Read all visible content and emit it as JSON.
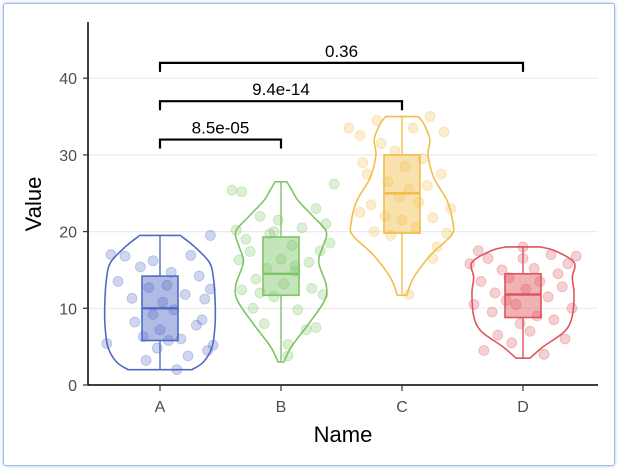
{
  "chart_data": {
    "type": "violin",
    "xlabel": "Name",
    "ylabel": "Value",
    "categories": [
      "A",
      "B",
      "C",
      "D"
    ],
    "ylim": [
      0,
      47
    ],
    "yticks": [
      0,
      10,
      20,
      30,
      40
    ],
    "grid": "horizontal-major",
    "colors": {
      "A": "#4f6bc4",
      "B": "#7dc466",
      "C": "#f2bd4a",
      "D": "#e0545c"
    },
    "boxes": [
      {
        "name": "A",
        "min": 2,
        "q1": 5.8,
        "median": 10,
        "q3": 14.2,
        "max": 19.5
      },
      {
        "name": "B",
        "min": 3,
        "q1": 11.7,
        "median": 14.5,
        "q3": 19.3,
        "max": 26.5
      },
      {
        "name": "C",
        "min": 11.7,
        "q1": 19.8,
        "median": 25,
        "q3": 30,
        "max": 35
      },
      {
        "name": "D",
        "min": 3.5,
        "q1": 8.8,
        "median": 11.8,
        "q3": 14.5,
        "max": 18
      }
    ],
    "violins": [
      {
        "name": "A",
        "profile": [
          [
            2,
            0.55
          ],
          [
            3,
            0.75
          ],
          [
            5,
            0.9
          ],
          [
            8,
            0.95
          ],
          [
            11,
            0.95
          ],
          [
            14,
            0.92
          ],
          [
            16,
            0.85
          ],
          [
            18,
            0.6
          ],
          [
            19.5,
            0.35
          ]
        ]
      },
      {
        "name": "B",
        "profile": [
          [
            3,
            0.05
          ],
          [
            5,
            0.18
          ],
          [
            8,
            0.48
          ],
          [
            11,
            0.75
          ],
          [
            13,
            0.78
          ],
          [
            16,
            0.65
          ],
          [
            18,
            0.72
          ],
          [
            20,
            0.78
          ],
          [
            22,
            0.55
          ],
          [
            24,
            0.3
          ],
          [
            25.5,
            0.18
          ],
          [
            26.5,
            0.1
          ]
        ]
      },
      {
        "name": "C",
        "profile": [
          [
            11.7,
            0.08
          ],
          [
            14,
            0.2
          ],
          [
            17,
            0.5
          ],
          [
            19.5,
            0.85
          ],
          [
            21,
            0.88
          ],
          [
            24,
            0.78
          ],
          [
            27,
            0.55
          ],
          [
            30,
            0.45
          ],
          [
            32,
            0.48
          ],
          [
            34,
            0.38
          ],
          [
            35,
            0.28
          ]
        ]
      },
      {
        "name": "D",
        "profile": [
          [
            3.5,
            0.12
          ],
          [
            5,
            0.35
          ],
          [
            7,
            0.72
          ],
          [
            9,
            0.85
          ],
          [
            12,
            0.88
          ],
          [
            14,
            0.85
          ],
          [
            16,
            0.88
          ],
          [
            17.5,
            0.55
          ],
          [
            18,
            0.3
          ]
        ]
      }
    ],
    "points": {
      "A": [
        [
          -0.38,
          5.4
        ],
        [
          -0.3,
          13.5
        ],
        [
          -0.25,
          16.8
        ],
        [
          -0.2,
          11.3
        ],
        [
          -0.18,
          8.2
        ],
        [
          -0.12,
          6.3
        ],
        [
          -0.1,
          3.2
        ],
        [
          -0.08,
          12.7
        ],
        [
          -0.05,
          9.2
        ],
        [
          -0.05,
          16.2
        ],
        [
          -0.02,
          4.8
        ],
        [
          0.0,
          7.2
        ],
        [
          0.02,
          10.8
        ],
        [
          0.05,
          13.0
        ],
        [
          0.08,
          14.7
        ],
        [
          0.1,
          9.8
        ],
        [
          0.12,
          2.0
        ],
        [
          0.15,
          6.0
        ],
        [
          0.18,
          11.8
        ],
        [
          0.2,
          3.8
        ],
        [
          0.22,
          16.9
        ],
        [
          0.28,
          14.2
        ],
        [
          0.3,
          8.5
        ],
        [
          0.32,
          11.2
        ],
        [
          0.34,
          4.5
        ],
        [
          0.36,
          12.5
        ],
        [
          0.38,
          5.2
        ],
        [
          0.36,
          19.5
        ],
        [
          -0.35,
          17.0
        ],
        [
          0.26,
          7.8
        ],
        [
          -0.14,
          15.4
        ],
        [
          0.06,
          5.8
        ]
      ],
      "B": [
        [
          -0.35,
          25.4
        ],
        [
          -0.28,
          25.2
        ],
        [
          -0.32,
          20.2
        ],
        [
          -0.3,
          16.3
        ],
        [
          -0.28,
          12.4
        ],
        [
          -0.25,
          19.0
        ],
        [
          -0.22,
          17.4
        ],
        [
          -0.2,
          10.0
        ],
        [
          -0.18,
          13.8
        ],
        [
          -0.15,
          22.0
        ],
        [
          -0.12,
          8.0
        ],
        [
          -0.1,
          15.2
        ],
        [
          -0.08,
          19.7
        ],
        [
          -0.05,
          11.5
        ],
        [
          -0.02,
          21.5
        ],
        [
          0.0,
          16.4
        ],
        [
          0.02,
          13.2
        ],
        [
          0.05,
          5.3
        ],
        [
          0.08,
          18.2
        ],
        [
          0.1,
          14.8
        ],
        [
          0.12,
          9.8
        ],
        [
          0.15,
          20.5
        ],
        [
          0.18,
          7.2
        ],
        [
          0.2,
          16.0
        ],
        [
          0.22,
          12.6
        ],
        [
          0.25,
          23.0
        ],
        [
          0.28,
          17.5
        ],
        [
          0.3,
          11.8
        ],
        [
          0.32,
          21.0
        ],
        [
          0.35,
          18.5
        ],
        [
          0.38,
          26.2
        ],
        [
          0.25,
          7.5
        ],
        [
          -0.15,
          12.0
        ],
        [
          0.05,
          3.8
        ],
        [
          -0.05,
          20.0
        ],
        [
          0.1,
          15.5
        ]
      ],
      "C": [
        [
          -0.38,
          33.5
        ],
        [
          -0.3,
          32.5
        ],
        [
          -0.28,
          29.0
        ],
        [
          -0.25,
          27.5
        ],
        [
          -0.22,
          23.5
        ],
        [
          -0.2,
          20.0
        ],
        [
          -0.18,
          34.5
        ],
        [
          -0.15,
          31.5
        ],
        [
          -0.12,
          22.0
        ],
        [
          -0.1,
          26.5
        ],
        [
          -0.08,
          19.5
        ],
        [
          -0.05,
          30.5
        ],
        [
          -0.02,
          24.5
        ],
        [
          0.0,
          21.5
        ],
        [
          0.02,
          28.5
        ],
        [
          0.05,
          25.5
        ],
        [
          0.08,
          33.5
        ],
        [
          0.1,
          20.5
        ],
        [
          0.12,
          23.8
        ],
        [
          0.15,
          29.5
        ],
        [
          0.18,
          26.0
        ],
        [
          0.2,
          35.0
        ],
        [
          0.22,
          21.8
        ],
        [
          0.25,
          18.0
        ],
        [
          0.28,
          27.5
        ],
        [
          0.3,
          33.0
        ],
        [
          0.32,
          19.8
        ],
        [
          0.35,
          23.0
        ],
        [
          0.05,
          11.8
        ],
        [
          -0.3,
          22.5
        ],
        [
          0.22,
          16.5
        ]
      ],
      "D": [
        [
          -0.38,
          15.8
        ],
        [
          -0.35,
          10.5
        ],
        [
          -0.3,
          13.5
        ],
        [
          -0.28,
          4.5
        ],
        [
          -0.25,
          16.5
        ],
        [
          -0.22,
          9.5
        ],
        [
          -0.2,
          12.0
        ],
        [
          -0.18,
          6.5
        ],
        [
          -0.15,
          15.0
        ],
        [
          -0.12,
          11.0
        ],
        [
          -0.1,
          14.0
        ],
        [
          -0.08,
          5.5
        ],
        [
          -0.05,
          10.5
        ],
        [
          -0.02,
          8.0
        ],
        [
          0.0,
          16.5
        ],
        [
          0.02,
          12.5
        ],
        [
          0.05,
          7.0
        ],
        [
          0.08,
          15.2
        ],
        [
          0.1,
          9.0
        ],
        [
          0.12,
          13.5
        ],
        [
          0.15,
          4.0
        ],
        [
          0.18,
          11.5
        ],
        [
          0.2,
          17.0
        ],
        [
          0.22,
          8.5
        ],
        [
          0.25,
          14.5
        ],
        [
          0.28,
          12.8
        ],
        [
          0.3,
          6.0
        ],
        [
          0.32,
          15.8
        ],
        [
          0.35,
          10.0
        ],
        [
          0.38,
          16.8
        ],
        [
          -0.32,
          17.5
        ],
        [
          0.0,
          18.0
        ]
      ]
    },
    "comparisons": [
      {
        "groups": [
          "A",
          "B"
        ],
        "y": 32,
        "label": "8.5e-05"
      },
      {
        "groups": [
          "A",
          "C"
        ],
        "y": 37,
        "label": "9.4e-14"
      },
      {
        "groups": [
          "A",
          "D"
        ],
        "y": 42,
        "label": "0.36"
      }
    ]
  }
}
